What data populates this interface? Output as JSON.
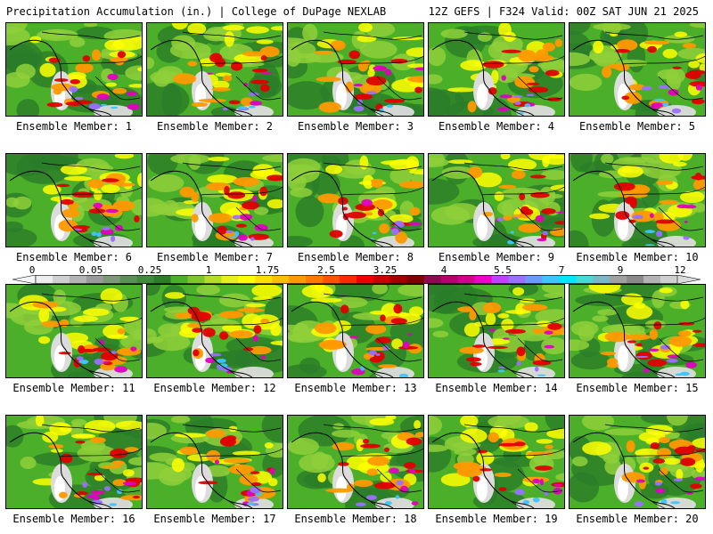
{
  "header": {
    "left": "Precipitation Accumulation (in.) | College of DuPage NEXLAB",
    "right": "12Z GEFS | F324 Valid: 00Z SAT JUN 21 2025"
  },
  "panels": [
    {
      "label": "Ensemble Member: 1"
    },
    {
      "label": "Ensemble Member: 2"
    },
    {
      "label": "Ensemble Member: 3"
    },
    {
      "label": "Ensemble Member: 4"
    },
    {
      "label": "Ensemble Member: 5"
    },
    {
      "label": "Ensemble Member: 6"
    },
    {
      "label": "Ensemble Member: 7"
    },
    {
      "label": "Ensemble Member: 8"
    },
    {
      "label": "Ensemble Member: 9"
    },
    {
      "label": "Ensemble Member: 10"
    },
    {
      "label": "Ensemble Member: 11"
    },
    {
      "label": "Ensemble Member: 12"
    },
    {
      "label": "Ensemble Member: 13"
    },
    {
      "label": "Ensemble Member: 14"
    },
    {
      "label": "Ensemble Member: 15"
    },
    {
      "label": "Ensemble Member: 16"
    },
    {
      "label": "Ensemble Member: 17"
    },
    {
      "label": "Ensemble Member: 18"
    },
    {
      "label": "Ensemble Member: 19"
    },
    {
      "label": "Ensemble Member: 20"
    }
  ],
  "colorbar": {
    "tick_labels": [
      "0",
      "0.05",
      "0.25",
      "1",
      "1.75",
      "2.5",
      "3.25",
      "4",
      "5.5",
      "7",
      "9",
      "12"
    ],
    "colors": [
      "#eeeeee",
      "#d0d0d0",
      "#b4b4b4",
      "#9a9a9a",
      "#7c9a78",
      "#5a8f55",
      "#3f8a3b",
      "#2b7d28",
      "#4caf2a",
      "#7ec42c",
      "#b5dc2a",
      "#e6f01c",
      "#ffff00",
      "#ffde00",
      "#ffbf00",
      "#ff9900",
      "#ff7a00",
      "#ff5500",
      "#ff2a00",
      "#f00000",
      "#cc0000",
      "#a00000",
      "#800000",
      "#8b0a50",
      "#b4006e",
      "#d4008c",
      "#f000c8",
      "#c040ff",
      "#9a70ff",
      "#6a9cff",
      "#3ec4ff",
      "#00e6ff",
      "#48d8d8",
      "#7ab8c8",
      "#a0a0a0",
      "#8a8a8a",
      "#b4b4b4",
      "#cfcfcf"
    ]
  },
  "colors": {
    "green_dark": "#2b7d28",
    "green_mid": "#4caf2a",
    "green_light": "#8fd03a",
    "yellow": "#ffff00",
    "orange": "#ff9900",
    "red": "#e00000",
    "magenta": "#e000c0",
    "purple": "#9a70ff",
    "cyan": "#3ec4ff",
    "gray_light": "#dcdcdc",
    "white": "#ffffff"
  }
}
